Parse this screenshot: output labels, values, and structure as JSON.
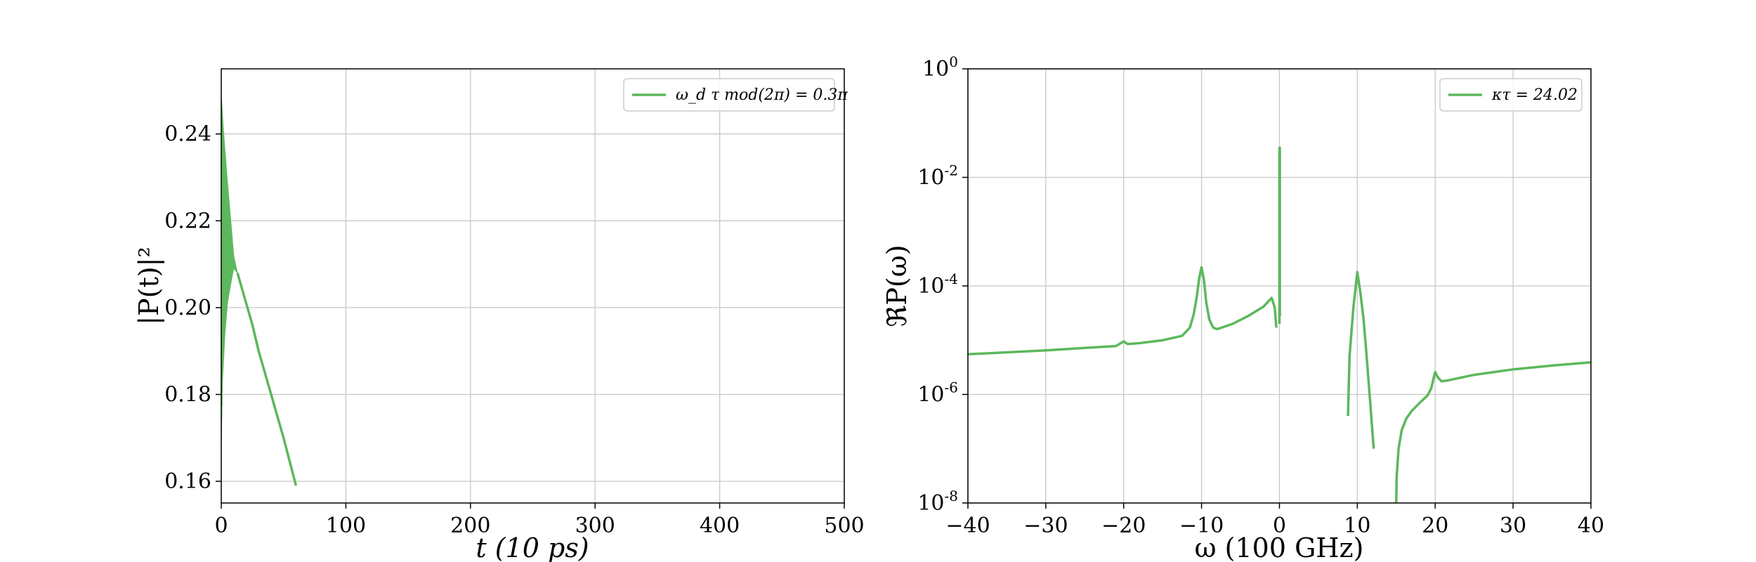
{
  "colors": {
    "series": "#5cb85c",
    "grid": "#c8c8c8",
    "axis": "#000000",
    "legend_border": "#cccccc"
  },
  "chart_data": [
    {
      "type": "line",
      "xlabel": "t (10 ps)",
      "ylabel": "|P(t)|²",
      "xlim": [
        0,
        500
      ],
      "ylim": [
        0.155,
        0.255
      ],
      "xticks": [
        0,
        100,
        200,
        300,
        400,
        500
      ],
      "xtick_labels": [
        "0",
        "100",
        "200",
        "300",
        "400",
        "500"
      ],
      "yticks": [
        0.16,
        0.18,
        0.2,
        0.22,
        0.24
      ],
      "ytick_labels": [
        "0.16",
        "0.18",
        "0.20",
        "0.22",
        "0.24"
      ],
      "grid": true,
      "legend_position": "top-right",
      "series": [
        {
          "name": "ω_d τ mod(2π) = 0.3π",
          "envelope_upper": {
            "x": [
              0,
              2,
              5,
              8,
              10,
              13,
              16,
              20,
              25,
              30,
              40,
              50,
              60
            ],
            "y": [
              0.249,
              0.24,
              0.229,
              0.219,
              0.212,
              0.208,
              0.205,
              0.201,
              0.196,
              0.19,
              0.18,
              0.17,
              0.159
            ]
          },
          "envelope_lower": {
            "x": [
              0,
              1,
              3,
              5,
              8,
              10,
              13
            ],
            "y": [
              0.167,
              0.183,
              0.194,
              0.201,
              0.206,
              0.209,
              0.208
            ]
          }
        }
      ]
    },
    {
      "type": "line",
      "xlabel": "ω (100 GHz)",
      "ylabel": "ℜP(ω)",
      "xlim": [
        -40,
        40
      ],
      "ylim": [
        1e-08,
        1
      ],
      "yscale": "log",
      "xticks": [
        -40,
        -30,
        -20,
        -10,
        0,
        10,
        20,
        30,
        40
      ],
      "xtick_labels": [
        "−40",
        "−30",
        "−20",
        "−10",
        "0",
        "10",
        "20",
        "30",
        "40"
      ],
      "yticks": [
        1e-08,
        1e-06,
        0.0001,
        0.01,
        1
      ],
      "ytick_base": [
        "10",
        "10",
        "10",
        "10",
        "10"
      ],
      "ytick_exp": [
        "-8",
        "-6",
        "-4",
        "-2",
        "0"
      ],
      "grid": true,
      "legend_position": "top-right",
      "series": [
        {
          "name": "κτ = 24.02",
          "segments": [
            {
              "x": [
                -40,
                -30,
                -25,
                -21,
                -20,
                -19.5,
                -18,
                -15,
                -12.5,
                -11.5,
                -11,
                -10.6,
                -10.3,
                -10.0,
                -9.7,
                -9.4,
                -9.0,
                -8.5,
                -8,
                -6,
                -4,
                -2,
                -1,
                -0.6,
                -0.4
              ],
              "y": [
                5.5e-06,
                6.5e-06,
                7.2e-06,
                7.8e-06,
                9.5e-06,
                8.5e-06,
                8.8e-06,
                1e-05,
                1.2e-05,
                1.7e-05,
                3e-05,
                6.5e-05,
                0.00014,
                0.00022,
                0.00013,
                5e-05,
                2.4e-05,
                1.7e-05,
                1.6e-05,
                2e-05,
                2.8e-05,
                4.2e-05,
                6e-05,
                4e-05,
                1.7e-05
              ]
            },
            {
              "x": [
                0,
                0,
                0.05,
                0.05,
                0.1
              ],
              "y": [
                2e-05,
                0.035,
                0.035,
                3e-05,
                2.8e-05
              ]
            },
            {
              "x": [
                8.8,
                9.0,
                9.5,
                10.0,
                10.4,
                10.8,
                11.2,
                11.7,
                12.1
              ],
              "y": [
                4e-07,
                5e-06,
                4e-05,
                0.00018,
                7.5e-05,
                2.5e-05,
                5e-06,
                6e-07,
                1e-07
              ]
            },
            {
              "x": [
                15.0,
                15.05,
                15.3,
                15.7,
                16.3,
                17,
                18,
                19,
                19.5,
                19.8,
                20.0,
                20.3,
                20.8,
                21.5,
                25,
                30,
                35,
                40
              ],
              "y": [
                1e-08,
                3e-08,
                1e-07,
                2.2e-07,
                3.6e-07,
                5e-07,
                7e-07,
                9.5e-07,
                1.3e-06,
                2e-06,
                2.6e-06,
                2.1e-06,
                1.75e-06,
                1.8e-06,
                2.3e-06,
                2.9e-06,
                3.4e-06,
                3.9e-06
              ]
            }
          ]
        }
      ]
    }
  ]
}
